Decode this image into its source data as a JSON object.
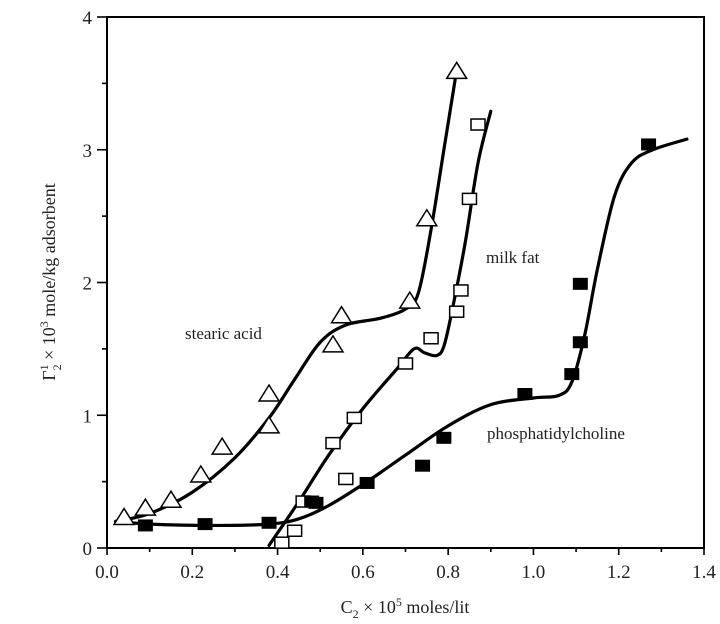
{
  "chart_data": {
    "type": "scatter",
    "title": "",
    "xlabel": {
      "main": "C",
      "sub": "2",
      "mid": " × 10",
      "sup": "5",
      "rest": " moles/lit"
    },
    "ylabel": {
      "main": "Γ",
      "sup1": "1",
      "sub": "2",
      "mid": " × 10",
      "sup": "3",
      "rest": " mole/kg adsorbent"
    },
    "xlim": [
      0,
      1.4
    ],
    "ylim": [
      0,
      4
    ],
    "xticks": [
      "0.0",
      "0.2",
      "0.4",
      "0.6",
      "0.8",
      "1.0",
      "1.2",
      "1.4"
    ],
    "yticks": [
      "0",
      "1",
      "2",
      "3",
      "4"
    ],
    "grid": false,
    "series": [
      {
        "name": "stearic acid",
        "marker": "open-triangle",
        "points": [
          [
            0.04,
            0.23
          ],
          [
            0.09,
            0.3
          ],
          [
            0.15,
            0.36
          ],
          [
            0.22,
            0.55
          ],
          [
            0.27,
            0.76
          ],
          [
            0.38,
            0.92
          ],
          [
            0.38,
            1.16
          ],
          [
            0.53,
            1.53
          ],
          [
            0.55,
            1.75
          ],
          [
            0.71,
            1.86
          ],
          [
            0.75,
            2.48
          ],
          [
            0.82,
            3.59
          ]
        ],
        "fit": [
          [
            0.02,
            0.2
          ],
          [
            0.1,
            0.26
          ],
          [
            0.2,
            0.42
          ],
          [
            0.3,
            0.68
          ],
          [
            0.38,
            0.98
          ],
          [
            0.44,
            1.27
          ],
          [
            0.5,
            1.55
          ],
          [
            0.56,
            1.68
          ],
          [
            0.64,
            1.73
          ],
          [
            0.7,
            1.8
          ],
          [
            0.73,
            1.92
          ],
          [
            0.76,
            2.4
          ],
          [
            0.79,
            3.0
          ],
          [
            0.82,
            3.6
          ]
        ]
      },
      {
        "name": "milk fat",
        "marker": "open-square",
        "points": [
          [
            0.41,
            0.04
          ],
          [
            0.44,
            0.13
          ],
          [
            0.46,
            0.35
          ],
          [
            0.53,
            0.79
          ],
          [
            0.56,
            0.52
          ],
          [
            0.58,
            0.98
          ],
          [
            0.7,
            1.39
          ],
          [
            0.76,
            1.58
          ],
          [
            0.82,
            1.78
          ],
          [
            0.83,
            1.94
          ],
          [
            0.85,
            2.63
          ],
          [
            0.87,
            3.19
          ]
        ],
        "fit": [
          [
            0.38,
            0.02
          ],
          [
            0.45,
            0.35
          ],
          [
            0.52,
            0.7
          ],
          [
            0.6,
            1.05
          ],
          [
            0.68,
            1.35
          ],
          [
            0.72,
            1.5
          ],
          [
            0.745,
            1.47
          ],
          [
            0.773,
            1.45
          ],
          [
            0.79,
            1.52
          ],
          [
            0.81,
            1.8
          ],
          [
            0.84,
            2.3
          ],
          [
            0.87,
            2.9
          ],
          [
            0.9,
            3.29
          ]
        ]
      },
      {
        "name": "phosphatidylcholine",
        "marker": "filled-square",
        "points": [
          [
            0.09,
            0.17
          ],
          [
            0.23,
            0.18
          ],
          [
            0.38,
            0.19
          ],
          [
            0.48,
            0.35
          ],
          [
            0.49,
            0.34
          ],
          [
            0.61,
            0.49
          ],
          [
            0.74,
            0.62
          ],
          [
            0.79,
            0.83
          ],
          [
            0.98,
            1.16
          ],
          [
            1.09,
            1.31
          ],
          [
            1.11,
            1.55
          ],
          [
            1.11,
            1.99
          ],
          [
            1.27,
            3.04
          ]
        ],
        "fit": [
          [
            0.02,
            0.2
          ],
          [
            0.1,
            0.18
          ],
          [
            0.25,
            0.17
          ],
          [
            0.38,
            0.18
          ],
          [
            0.45,
            0.22
          ],
          [
            0.52,
            0.32
          ],
          [
            0.61,
            0.5
          ],
          [
            0.7,
            0.7
          ],
          [
            0.8,
            0.92
          ],
          [
            0.9,
            1.08
          ],
          [
            1.0,
            1.13
          ],
          [
            1.06,
            1.15
          ],
          [
            1.09,
            1.25
          ],
          [
            1.12,
            1.6
          ],
          [
            1.15,
            2.1
          ],
          [
            1.19,
            2.65
          ],
          [
            1.23,
            2.9
          ],
          [
            1.28,
            3.0
          ],
          [
            1.36,
            3.08
          ]
        ]
      }
    ],
    "annotations": [
      "stearic acid",
      "milk fat",
      "phosphatidylcholine"
    ]
  }
}
